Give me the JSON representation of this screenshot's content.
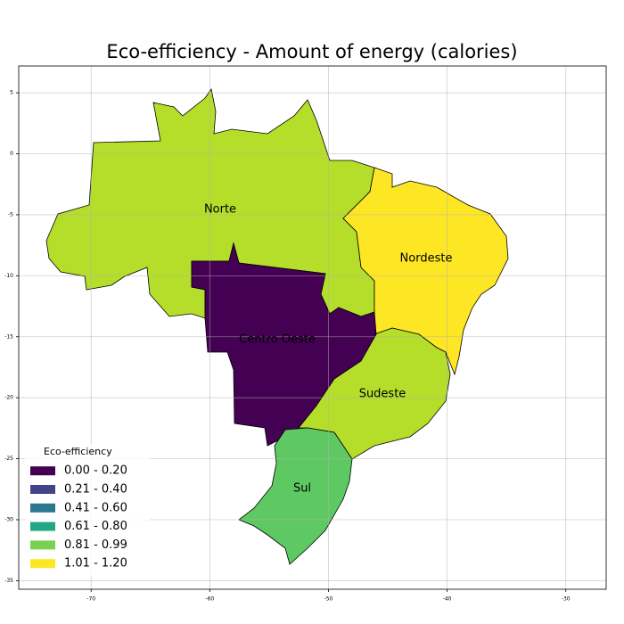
{
  "chart_data": {
    "type": "choropleth",
    "title": "Eco-efficiency - Amount of energy (calories)",
    "xlim": [
      -76.1,
      -26.6
    ],
    "ylim": [
      -35.7,
      7.2
    ],
    "xticks": [
      -70,
      -60,
      -50,
      -40,
      -30
    ],
    "yticks": [
      5,
      0,
      -5,
      -10,
      -15,
      -20,
      -25,
      -30,
      -35
    ],
    "grid": true,
    "regions": [
      {
        "name": "Norte",
        "color": "#b5de2b"
      },
      {
        "name": "Nordeste",
        "color": "#fde725"
      },
      {
        "name": "Centro Oeste",
        "color": "#440154"
      },
      {
        "name": "Sudeste",
        "color": "#b5de2b"
      },
      {
        "name": "Sul",
        "color": "#5ec962"
      }
    ],
    "legend": {
      "title": "Eco-efficiency",
      "position": "lower left",
      "entries": [
        {
          "label": "0.00 - 0.20",
          "color": "#440154"
        },
        {
          "label": "0.21 - 0.40",
          "color": "#414487"
        },
        {
          "label": "0.41 - 0.60",
          "color": "#2a788e"
        },
        {
          "label": "0.61 - 0.80",
          "color": "#22a884"
        },
        {
          "label": "0.81 - 0.99",
          "color": "#7ad151"
        },
        {
          "label": "1.01 - 1.20",
          "color": "#fde725"
        }
      ]
    }
  }
}
